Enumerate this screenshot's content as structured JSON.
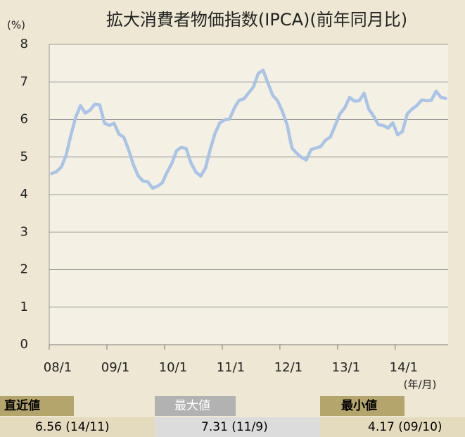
{
  "chart_data": {
    "type": "line",
    "title": "拡大消費者物価指数(IPCA)(前年同月比)",
    "y_unit": "(%)",
    "x_unit": "(年/月)",
    "categories": [
      "08/1",
      null,
      null,
      null,
      null,
      null,
      null,
      null,
      null,
      null,
      null,
      null,
      "09/1",
      null,
      null,
      null,
      null,
      null,
      null,
      null,
      null,
      null,
      null,
      null,
      "10/1",
      null,
      null,
      null,
      null,
      null,
      null,
      null,
      null,
      null,
      null,
      null,
      "11/1",
      null,
      null,
      null,
      null,
      null,
      null,
      null,
      null,
      null,
      null,
      null,
      "12/1",
      null,
      null,
      null,
      null,
      null,
      null,
      null,
      null,
      null,
      null,
      null,
      "13/1",
      null,
      null,
      null,
      null,
      null,
      null,
      null,
      null,
      null,
      null,
      null,
      "14/1",
      null,
      null,
      null,
      null,
      null,
      null,
      null,
      null,
      null,
      null
    ],
    "series": [
      {
        "color": "#a9c4e6",
        "values": [
          4.56,
          4.61,
          4.73,
          5.04,
          5.58,
          6.06,
          6.37,
          6.17,
          6.25,
          6.41,
          6.39,
          5.9,
          5.84,
          5.9,
          5.61,
          5.53,
          5.2,
          4.8,
          4.5,
          4.36,
          4.34,
          4.17,
          4.22,
          4.31,
          4.59,
          4.83,
          5.17,
          5.26,
          5.22,
          4.84,
          4.6,
          4.49,
          4.7,
          5.2,
          5.63,
          5.91,
          5.99,
          6.01,
          6.3,
          6.51,
          6.55,
          6.71,
          6.87,
          7.23,
          7.31,
          6.97,
          6.64,
          6.5,
          6.22,
          5.85,
          5.24,
          5.1,
          4.99,
          4.92,
          5.2,
          5.24,
          5.28,
          5.45,
          5.53,
          5.84,
          6.15,
          6.31,
          6.59,
          6.49,
          6.5,
          6.7,
          6.27,
          6.09,
          5.86,
          5.84,
          5.77,
          5.91,
          5.59,
          5.68,
          6.15,
          6.28,
          6.37,
          6.52,
          6.5,
          6.51,
          6.75,
          6.59,
          6.56
        ]
      }
    ],
    "ylim": [
      0,
      8
    ],
    "yticks": [
      0,
      1,
      2,
      3,
      4,
      5,
      6,
      7,
      8
    ],
    "grid": true
  },
  "summary": {
    "headers": [
      "直近値",
      "最大値",
      "最小値"
    ],
    "values": [
      "6.56",
      "7.31",
      "4.17"
    ],
    "periods": [
      "(14/11)",
      "(11/9)",
      "(09/10)"
    ]
  }
}
